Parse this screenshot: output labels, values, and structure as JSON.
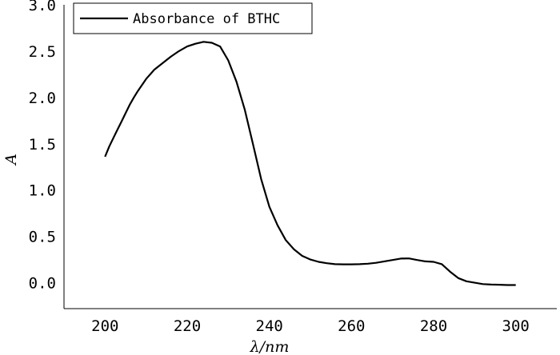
{
  "chart_data": {
    "type": "line",
    "title": "",
    "xlabel": "λ/nm",
    "ylabel": "A",
    "xlim": [
      190,
      310
    ],
    "ylim": [
      -0.28,
      3.0
    ],
    "x_ticks": [
      200,
      220,
      240,
      260,
      280,
      300
    ],
    "x_tick_labels": [
      "200",
      "220",
      "240",
      "260",
      "280",
      "300"
    ],
    "y_ticks": [
      0.0,
      0.5,
      1.0,
      1.5,
      2.0,
      2.5,
      3.0
    ],
    "y_tick_labels": [
      "0.0",
      "0.5",
      "1.0",
      "1.5",
      "2.0",
      "2.5",
      "3.0"
    ],
    "grid": false,
    "legend_position": "top-left",
    "series": [
      {
        "name": "Absorbance of BTHC",
        "color": "#000000",
        "x": [
          200,
          201,
          202,
          203,
          204,
          205,
          206,
          207,
          208,
          210,
          212,
          214,
          216,
          218,
          220,
          222,
          224,
          226,
          228,
          230,
          232,
          234,
          236,
          238,
          240,
          242,
          244,
          246,
          248,
          250,
          252,
          254,
          256,
          258,
          260,
          262,
          264,
          266,
          268,
          270,
          272,
          274,
          276,
          278,
          280,
          282,
          284,
          286,
          288,
          290,
          292,
          294,
          296,
          298,
          300
        ],
        "y": [
          1.36,
          1.47,
          1.56,
          1.65,
          1.74,
          1.83,
          1.92,
          2.0,
          2.07,
          2.2,
          2.3,
          2.37,
          2.44,
          2.5,
          2.55,
          2.58,
          2.6,
          2.59,
          2.55,
          2.4,
          2.17,
          1.87,
          1.5,
          1.12,
          0.82,
          0.62,
          0.46,
          0.36,
          0.29,
          0.25,
          0.225,
          0.21,
          0.2,
          0.198,
          0.198,
          0.2,
          0.205,
          0.215,
          0.23,
          0.245,
          0.26,
          0.262,
          0.245,
          0.23,
          0.225,
          0.2,
          0.12,
          0.05,
          0.015,
          0.0,
          -0.015,
          -0.02,
          -0.022,
          -0.025,
          -0.025
        ]
      }
    ]
  }
}
